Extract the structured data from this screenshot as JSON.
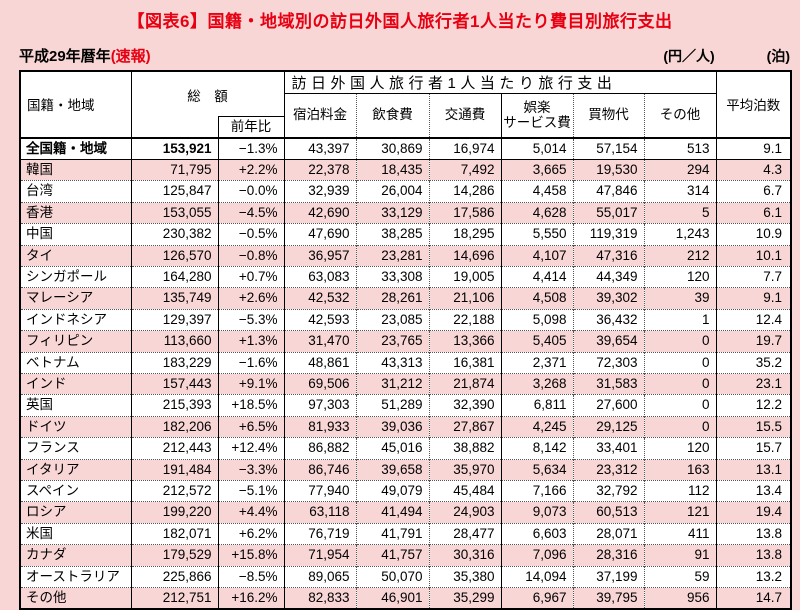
{
  "page": {
    "title": "【図表6】国籍・地域別の訪日外国人旅行者1人当たり費目別旅行支出",
    "period_label": "平成29年暦年",
    "period_note": "(速報)",
    "unit_currency": "(円／人)",
    "unit_nights": "(泊)"
  },
  "colors": {
    "accent_red": "#e60012",
    "page_pink": "#f9d6d6",
    "border_black": "#000000"
  },
  "table": {
    "header": {
      "region": "国籍・地域",
      "total": "総　額",
      "yoy": "前年比",
      "expense_group": "訪日外国人旅行者1人当たり旅行支出",
      "lodging": "宿泊料金",
      "food": "飲食費",
      "transport": "交通費",
      "entertainment": "娯楽\nサービス費",
      "shopping": "買物代",
      "other": "その他",
      "nights": "平均泊数"
    },
    "rows": [
      {
        "region": "全国籍・地域",
        "total": "153,921",
        "yoy": "−1.3%",
        "lodging": "43,397",
        "food": "30,869",
        "transport": "16,974",
        "entertainment": "5,014",
        "shopping": "57,154",
        "other": "513",
        "nights": "9.1"
      },
      {
        "region": "韓国",
        "total": "71,795",
        "yoy": "+2.2%",
        "lodging": "22,378",
        "food": "18,435",
        "transport": "7,492",
        "entertainment": "3,665",
        "shopping": "19,530",
        "other": "294",
        "nights": "4.3"
      },
      {
        "region": "台湾",
        "total": "125,847",
        "yoy": "−0.0%",
        "lodging": "32,939",
        "food": "26,004",
        "transport": "14,286",
        "entertainment": "4,458",
        "shopping": "47,846",
        "other": "314",
        "nights": "6.7"
      },
      {
        "region": "香港",
        "total": "153,055",
        "yoy": "−4.5%",
        "lodging": "42,690",
        "food": "33,129",
        "transport": "17,586",
        "entertainment": "4,628",
        "shopping": "55,017",
        "other": "5",
        "nights": "6.1"
      },
      {
        "region": "中国",
        "total": "230,382",
        "yoy": "−0.5%",
        "lodging": "47,690",
        "food": "38,285",
        "transport": "18,295",
        "entertainment": "5,550",
        "shopping": "119,319",
        "other": "1,243",
        "nights": "10.9"
      },
      {
        "region": "タイ",
        "total": "126,570",
        "yoy": "−0.8%",
        "lodging": "36,957",
        "food": "23,281",
        "transport": "14,696",
        "entertainment": "4,107",
        "shopping": "47,316",
        "other": "212",
        "nights": "10.1"
      },
      {
        "region": "シンガポール",
        "total": "164,280",
        "yoy": "+0.7%",
        "lodging": "63,083",
        "food": "33,308",
        "transport": "19,005",
        "entertainment": "4,414",
        "shopping": "44,349",
        "other": "120",
        "nights": "7.7"
      },
      {
        "region": "マレーシア",
        "total": "135,749",
        "yoy": "+2.6%",
        "lodging": "42,532",
        "food": "28,261",
        "transport": "21,106",
        "entertainment": "4,508",
        "shopping": "39,302",
        "other": "39",
        "nights": "9.1"
      },
      {
        "region": "インドネシア",
        "total": "129,397",
        "yoy": "−5.3%",
        "lodging": "42,593",
        "food": "23,085",
        "transport": "22,188",
        "entertainment": "5,098",
        "shopping": "36,432",
        "other": "1",
        "nights": "12.4"
      },
      {
        "region": "フィリピン",
        "total": "113,660",
        "yoy": "+1.3%",
        "lodging": "31,470",
        "food": "23,765",
        "transport": "13,366",
        "entertainment": "5,405",
        "shopping": "39,654",
        "other": "0",
        "nights": "19.7"
      },
      {
        "region": "ベトナム",
        "total": "183,229",
        "yoy": "−1.6%",
        "lodging": "48,861",
        "food": "43,313",
        "transport": "16,381",
        "entertainment": "2,371",
        "shopping": "72,303",
        "other": "0",
        "nights": "35.2"
      },
      {
        "region": "インド",
        "total": "157,443",
        "yoy": "+9.1%",
        "lodging": "69,506",
        "food": "31,212",
        "transport": "21,874",
        "entertainment": "3,268",
        "shopping": "31,583",
        "other": "0",
        "nights": "23.1"
      },
      {
        "region": "英国",
        "total": "215,393",
        "yoy": "+18.5%",
        "lodging": "97,303",
        "food": "51,289",
        "transport": "32,390",
        "entertainment": "6,811",
        "shopping": "27,600",
        "other": "0",
        "nights": "12.2"
      },
      {
        "region": "ドイツ",
        "total": "182,206",
        "yoy": "+6.5%",
        "lodging": "81,933",
        "food": "39,036",
        "transport": "27,867",
        "entertainment": "4,245",
        "shopping": "29,125",
        "other": "0",
        "nights": "15.5"
      },
      {
        "region": "フランス",
        "total": "212,443",
        "yoy": "+12.4%",
        "lodging": "86,882",
        "food": "45,016",
        "transport": "38,882",
        "entertainment": "8,142",
        "shopping": "33,401",
        "other": "120",
        "nights": "15.7"
      },
      {
        "region": "イタリア",
        "total": "191,484",
        "yoy": "−3.3%",
        "lodging": "86,746",
        "food": "39,658",
        "transport": "35,970",
        "entertainment": "5,634",
        "shopping": "23,312",
        "other": "163",
        "nights": "13.1"
      },
      {
        "region": "スペイン",
        "total": "212,572",
        "yoy": "−5.1%",
        "lodging": "77,940",
        "food": "49,079",
        "transport": "45,484",
        "entertainment": "7,166",
        "shopping": "32,792",
        "other": "112",
        "nights": "13.4"
      },
      {
        "region": "ロシア",
        "total": "199,220",
        "yoy": "+4.4%",
        "lodging": "63,118",
        "food": "41,494",
        "transport": "24,903",
        "entertainment": "9,073",
        "shopping": "60,513",
        "other": "121",
        "nights": "19.4"
      },
      {
        "region": "米国",
        "total": "182,071",
        "yoy": "+6.2%",
        "lodging": "76,719",
        "food": "41,791",
        "transport": "28,477",
        "entertainment": "6,603",
        "shopping": "28,071",
        "other": "411",
        "nights": "13.8"
      },
      {
        "region": "カナダ",
        "total": "179,529",
        "yoy": "+15.8%",
        "lodging": "71,954",
        "food": "41,757",
        "transport": "30,316",
        "entertainment": "7,096",
        "shopping": "28,316",
        "other": "91",
        "nights": "13.8"
      },
      {
        "region": "オーストラリア",
        "total": "225,866",
        "yoy": "−8.5%",
        "lodging": "89,065",
        "food": "50,070",
        "transport": "35,380",
        "entertainment": "14,094",
        "shopping": "37,199",
        "other": "59",
        "nights": "13.2"
      },
      {
        "region": "その他",
        "total": "212,751",
        "yoy": "+16.2%",
        "lodging": "82,833",
        "food": "46,901",
        "transport": "35,299",
        "entertainment": "6,967",
        "shopping": "39,795",
        "other": "956",
        "nights": "14.7"
      }
    ]
  }
}
